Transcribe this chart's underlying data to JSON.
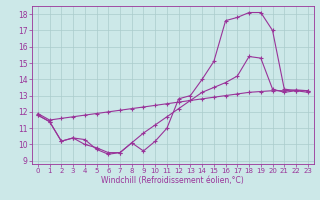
{
  "xlabel": "Windchill (Refroidissement éolien,°C)",
  "xlim": [
    -0.5,
    23.5
  ],
  "ylim": [
    8.8,
    18.5
  ],
  "xticks": [
    0,
    1,
    2,
    3,
    4,
    5,
    6,
    7,
    8,
    9,
    10,
    11,
    12,
    13,
    14,
    15,
    16,
    17,
    18,
    19,
    20,
    21,
    22,
    23
  ],
  "yticks": [
    9,
    10,
    11,
    12,
    13,
    14,
    15,
    16,
    17,
    18
  ],
  "background_color": "#cce8e8",
  "grid_color": "#aacccc",
  "line_color": "#993399",
  "series1_x": [
    0,
    1,
    2,
    3,
    4,
    5,
    6,
    7,
    8,
    9,
    10,
    11,
    12,
    13,
    14,
    15,
    16,
    17,
    18,
    19,
    20,
    21,
    22,
    23
  ],
  "series1_y": [
    11.8,
    11.4,
    10.2,
    10.4,
    10.3,
    9.7,
    9.4,
    9.5,
    10.1,
    9.6,
    10.2,
    11.0,
    12.8,
    13.0,
    14.0,
    15.1,
    17.6,
    17.8,
    18.1,
    18.1,
    17.0,
    13.4,
    13.3,
    13.2
  ],
  "series2_x": [
    0,
    1,
    2,
    3,
    4,
    5,
    6,
    7,
    8,
    9,
    10,
    11,
    12,
    13,
    14,
    15,
    16,
    17,
    18,
    19,
    20,
    21,
    22,
    23
  ],
  "series2_y": [
    11.8,
    11.4,
    10.2,
    10.4,
    10.0,
    9.8,
    9.5,
    9.5,
    10.1,
    10.7,
    11.2,
    11.7,
    12.2,
    12.7,
    13.2,
    13.5,
    13.8,
    14.2,
    15.4,
    15.3,
    13.4,
    13.2,
    13.3,
    13.3
  ],
  "series3_x": [
    0,
    1,
    2,
    3,
    4,
    5,
    6,
    7,
    8,
    9,
    10,
    11,
    12,
    13,
    14,
    15,
    16,
    17,
    18,
    19,
    20,
    21,
    22,
    23
  ],
  "series3_y": [
    11.9,
    11.5,
    11.6,
    11.7,
    11.8,
    11.9,
    12.0,
    12.1,
    12.2,
    12.3,
    12.4,
    12.5,
    12.6,
    12.7,
    12.8,
    12.9,
    13.0,
    13.1,
    13.2,
    13.25,
    13.3,
    13.3,
    13.35,
    13.3
  ]
}
